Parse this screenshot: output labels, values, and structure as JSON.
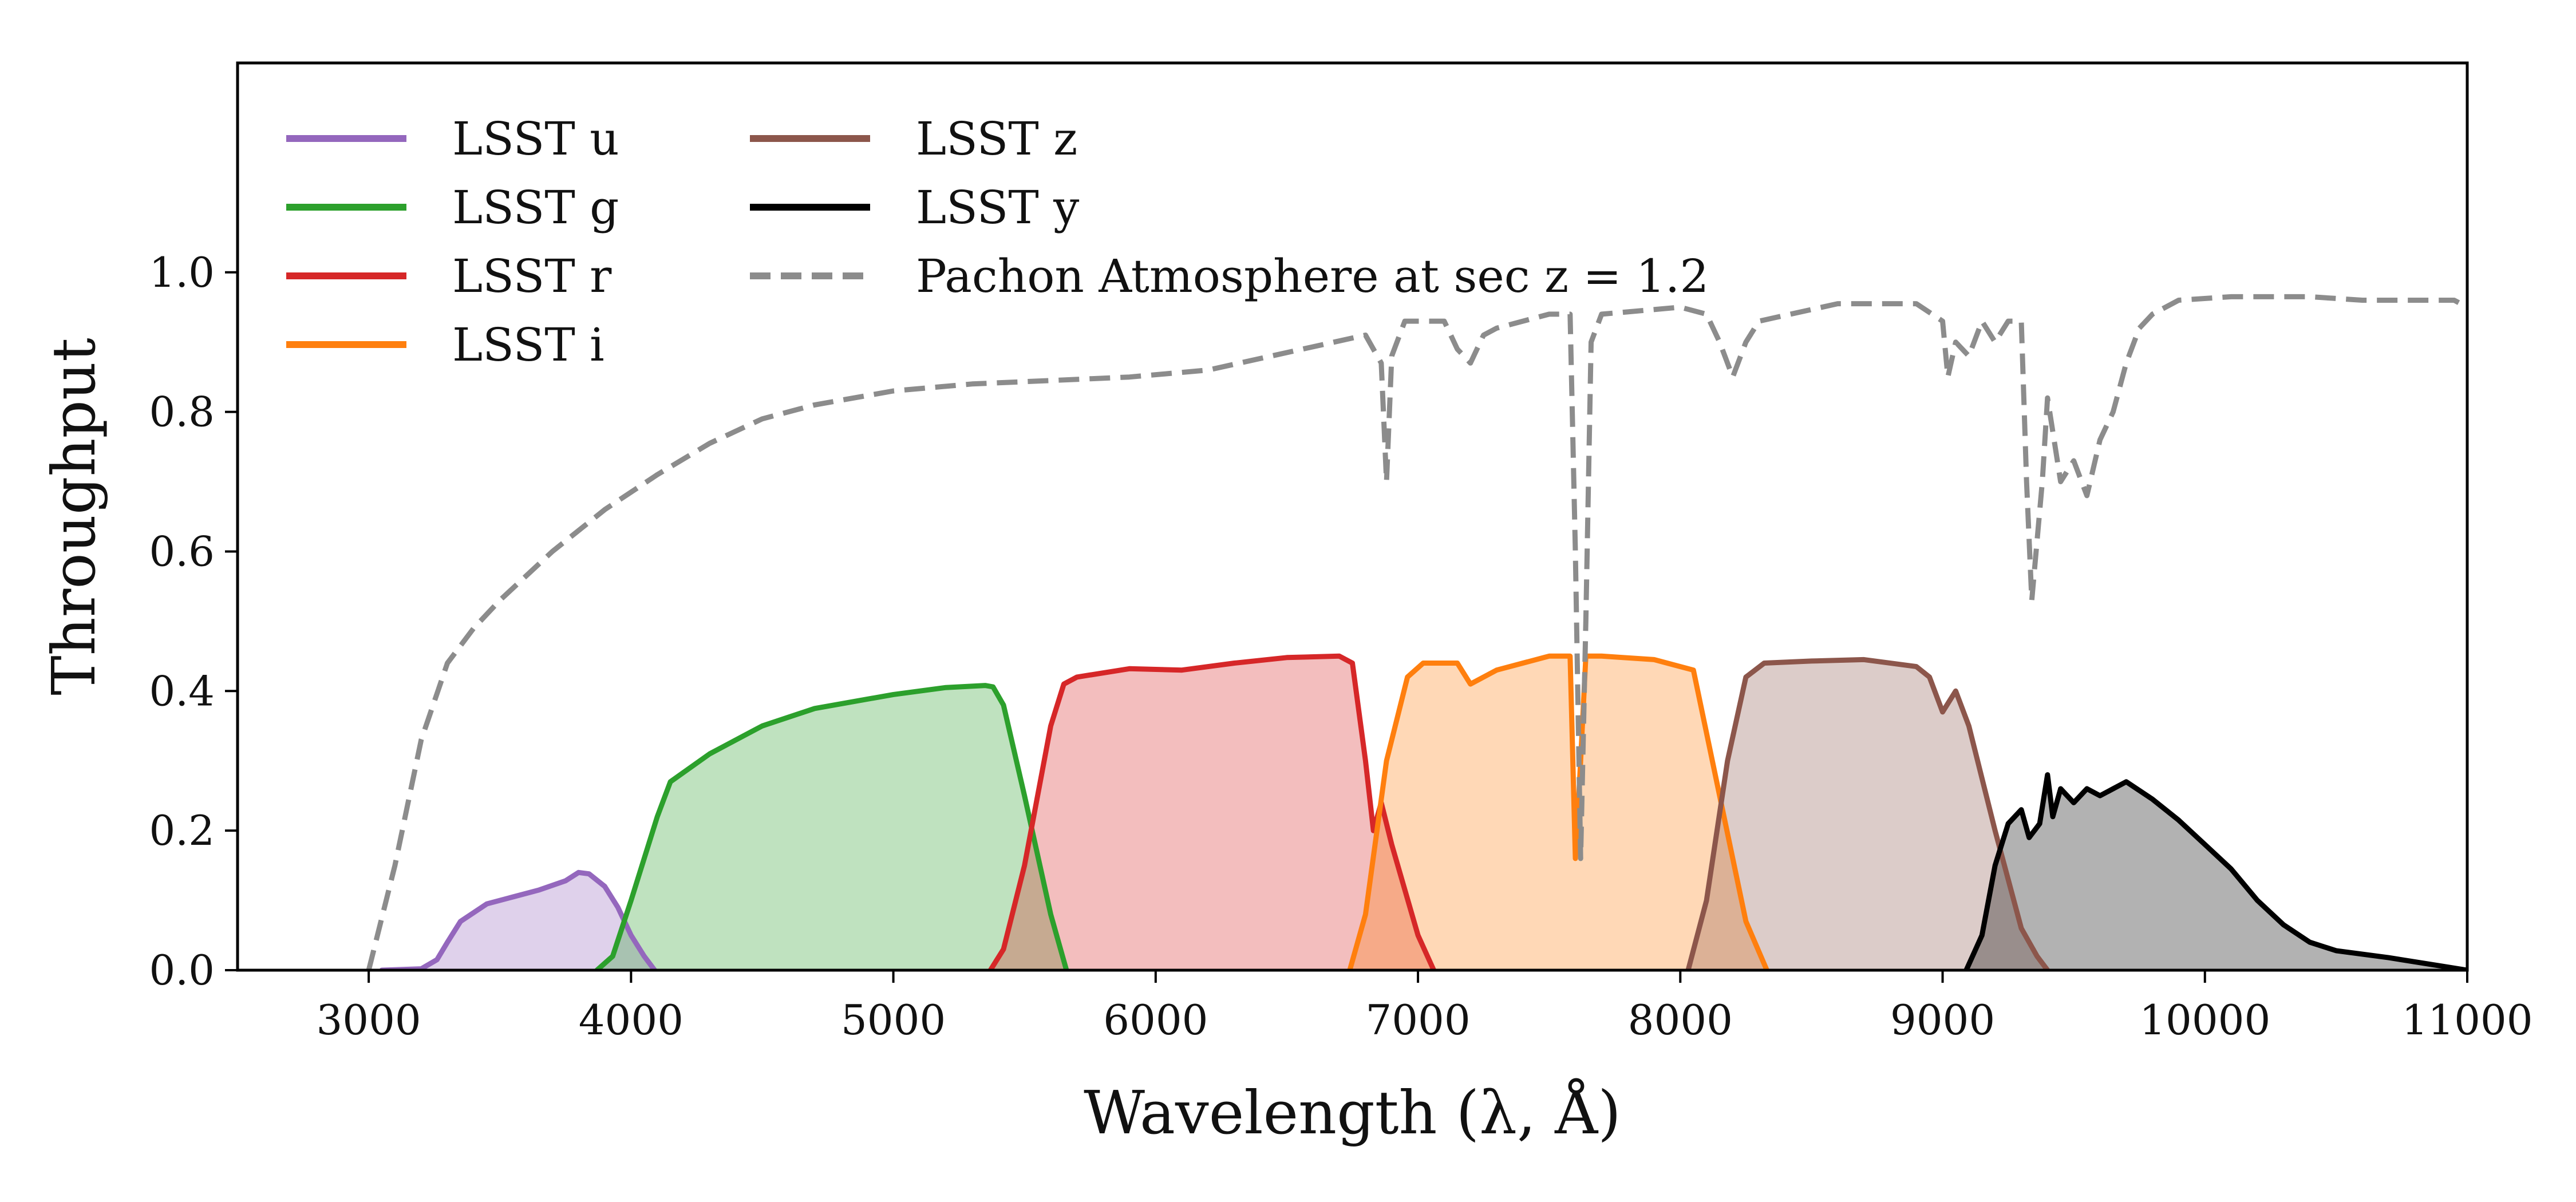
{
  "chart_data": {
    "type": "area",
    "xlabel": "Wavelength (λ, Å)",
    "ylabel": "Throughput",
    "xlim": [
      2500,
      11000
    ],
    "ylim": [
      0,
      1.3
    ],
    "xticks": [
      3000,
      4000,
      5000,
      6000,
      7000,
      8000,
      9000,
      10000,
      11000
    ],
    "yticks": [
      0.0,
      0.2,
      0.4,
      0.6,
      0.8,
      1.0
    ],
    "xtick_labels": [
      "3000",
      "4000",
      "5000",
      "6000",
      "7000",
      "8000",
      "9000",
      "10000",
      "11000"
    ],
    "ytick_labels": [
      "0.0",
      "0.2",
      "0.4",
      "0.6",
      "0.8",
      "1.0"
    ],
    "grid": false,
    "legend_position": "top-left",
    "series": [
      {
        "name": "LSST u",
        "band": "u",
        "color": "#9467bd",
        "filled": true,
        "x": [
          3050,
          3200,
          3260,
          3300,
          3350,
          3450,
          3550,
          3650,
          3750,
          3800,
          3840,
          3900,
          3950,
          4000,
          4050,
          4090
        ],
        "y": [
          0.0,
          0.002,
          0.015,
          0.04,
          0.07,
          0.095,
          0.105,
          0.115,
          0.128,
          0.14,
          0.138,
          0.12,
          0.09,
          0.05,
          0.02,
          0.0
        ]
      },
      {
        "name": "LSST g",
        "band": "g",
        "color": "#2ca02c",
        "filled": true,
        "x": [
          3870,
          3930,
          4000,
          4100,
          4150,
          4300,
          4500,
          4700,
          5000,
          5200,
          5350,
          5380,
          5420,
          5500,
          5600,
          5660
        ],
        "y": [
          0.0,
          0.02,
          0.1,
          0.22,
          0.27,
          0.31,
          0.35,
          0.375,
          0.395,
          0.405,
          0.408,
          0.406,
          0.38,
          0.25,
          0.08,
          0.0
        ]
      },
      {
        "name": "LSST r",
        "band": "r",
        "color": "#d62728",
        "filled": true,
        "x": [
          5370,
          5420,
          5500,
          5600,
          5650,
          5700,
          5900,
          6100,
          6300,
          6500,
          6700,
          6750,
          6800,
          6830,
          6860,
          6900,
          7000,
          7060
        ],
        "y": [
          0.0,
          0.03,
          0.15,
          0.35,
          0.41,
          0.42,
          0.432,
          0.43,
          0.44,
          0.448,
          0.45,
          0.44,
          0.3,
          0.2,
          0.24,
          0.18,
          0.05,
          0.0
        ]
      },
      {
        "name": "LSST i",
        "band": "i",
        "color": "#ff7f0e",
        "filled": true,
        "x": [
          6740,
          6800,
          6880,
          6960,
          7020,
          7150,
          7200,
          7300,
          7500,
          7580,
          7600,
          7620,
          7640,
          7700,
          7900,
          8050,
          8150,
          8250,
          8330
        ],
        "y": [
          0.0,
          0.08,
          0.3,
          0.42,
          0.44,
          0.44,
          0.41,
          0.43,
          0.45,
          0.45,
          0.16,
          0.3,
          0.45,
          0.45,
          0.445,
          0.43,
          0.25,
          0.07,
          0.0
        ]
      },
      {
        "name": "LSST z",
        "band": "z",
        "color": "#8c564b",
        "filled": true,
        "x": [
          8030,
          8100,
          8180,
          8250,
          8320,
          8500,
          8700,
          8900,
          8950,
          9000,
          9050,
          9100,
          9200,
          9300,
          9360,
          9400
        ],
        "y": [
          0.0,
          0.1,
          0.3,
          0.42,
          0.44,
          0.443,
          0.445,
          0.435,
          0.42,
          0.37,
          0.4,
          0.35,
          0.2,
          0.06,
          0.02,
          0.0
        ]
      },
      {
        "name": "LSST y",
        "band": "y",
        "color": "#000000",
        "filled": true,
        "x": [
          9090,
          9150,
          9200,
          9250,
          9300,
          9330,
          9370,
          9400,
          9420,
          9450,
          9500,
          9550,
          9600,
          9650,
          9700,
          9800,
          9900,
          10000,
          10100,
          10200,
          10300,
          10400,
          10500,
          10700,
          10900,
          11000
        ],
        "y": [
          0.0,
          0.05,
          0.15,
          0.21,
          0.23,
          0.19,
          0.21,
          0.28,
          0.22,
          0.26,
          0.24,
          0.26,
          0.25,
          0.26,
          0.27,
          0.245,
          0.215,
          0.18,
          0.145,
          0.1,
          0.065,
          0.04,
          0.028,
          0.018,
          0.006,
          0.0
        ]
      },
      {
        "name": "Pachon Atmosphere at sec z = 1.2",
        "band": "atm",
        "color": "#8c8c8c",
        "filled": false,
        "dashed": true,
        "x": [
          3000,
          3100,
          3200,
          3300,
          3400,
          3500,
          3700,
          3900,
          4100,
          4300,
          4500,
          4700,
          5000,
          5300,
          5600,
          5900,
          6200,
          6500,
          6800,
          6860,
          6880,
          6900,
          6950,
          7100,
          7150,
          7200,
          7250,
          7300,
          7500,
          7580,
          7600,
          7620,
          7640,
          7660,
          7700,
          8000,
          8100,
          8150,
          8200,
          8250,
          8300,
          8600,
          8900,
          9000,
          9020,
          9050,
          9100,
          9150,
          9200,
          9250,
          9300,
          9320,
          9340,
          9380,
          9400,
          9450,
          9500,
          9550,
          9600,
          9650,
          9700,
          9750,
          9800,
          9900,
          10100,
          10400,
          10600,
          10800,
          10950,
          11000
        ],
        "y": [
          0.0,
          0.15,
          0.33,
          0.44,
          0.49,
          0.53,
          0.6,
          0.66,
          0.71,
          0.755,
          0.79,
          0.81,
          0.83,
          0.84,
          0.845,
          0.85,
          0.86,
          0.885,
          0.91,
          0.87,
          0.7,
          0.88,
          0.93,
          0.93,
          0.89,
          0.87,
          0.91,
          0.92,
          0.94,
          0.94,
          0.6,
          0.16,
          0.5,
          0.9,
          0.94,
          0.95,
          0.94,
          0.9,
          0.85,
          0.9,
          0.93,
          0.955,
          0.955,
          0.93,
          0.85,
          0.9,
          0.88,
          0.93,
          0.9,
          0.93,
          0.93,
          0.7,
          0.53,
          0.7,
          0.82,
          0.7,
          0.73,
          0.68,
          0.76,
          0.8,
          0.87,
          0.92,
          0.94,
          0.96,
          0.965,
          0.965,
          0.96,
          0.96,
          0.96,
          0.95
        ]
      }
    ]
  }
}
